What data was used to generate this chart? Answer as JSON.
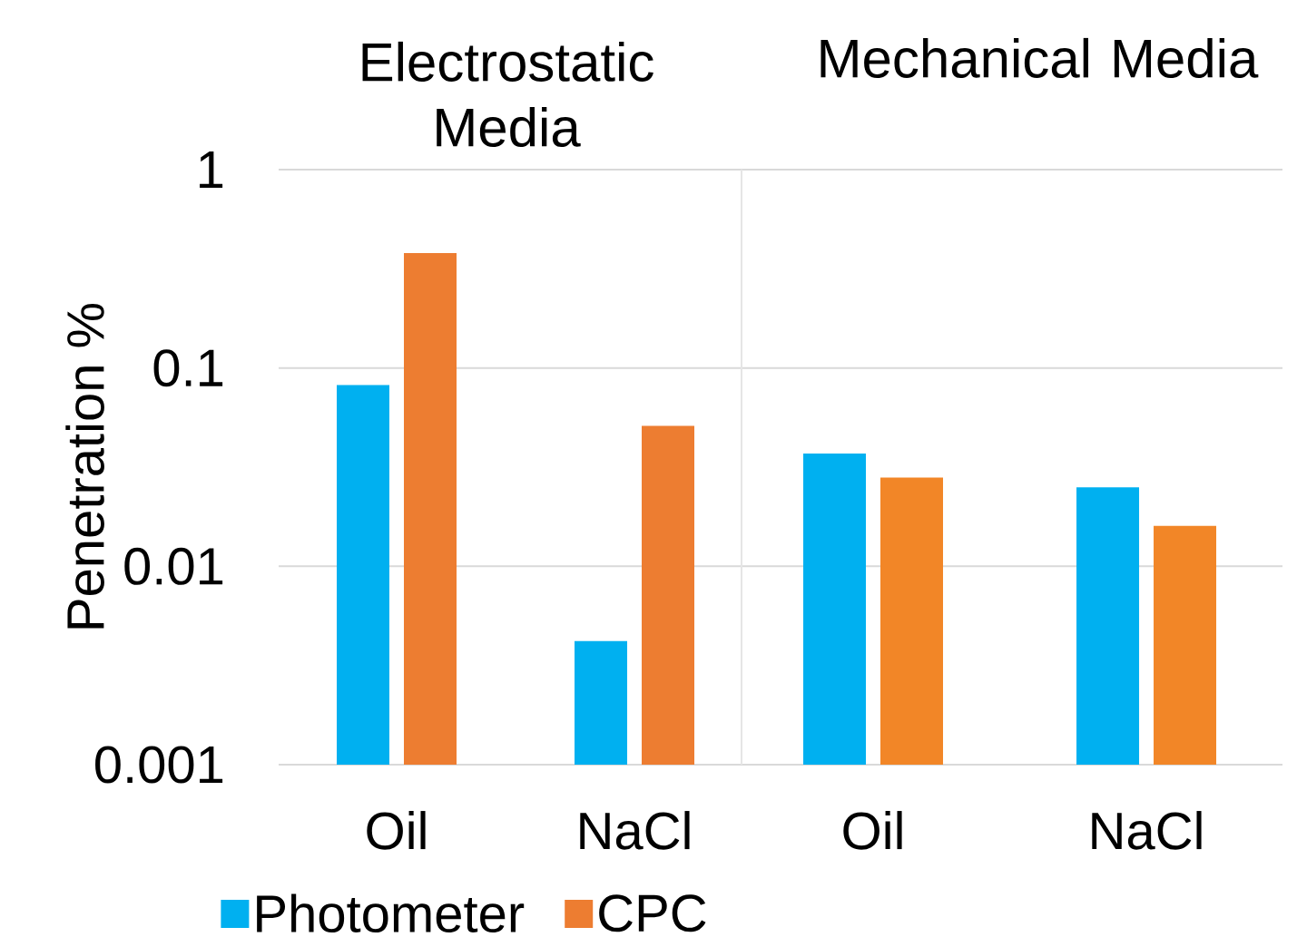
{
  "chart_data": [
    {
      "type": "bar",
      "title": "Electrostatic Media",
      "ylabel": "Penetration %",
      "categories": [
        "Oil",
        "NaCl"
      ],
      "series": [
        {
          "name": "Photometer",
          "color": "#00b0f0",
          "values": [
            0.082,
            0.0042
          ]
        },
        {
          "name": "CPC",
          "color": "#ed7d31",
          "values": [
            0.38,
            0.051
          ]
        }
      ],
      "log": "y",
      "ylim": [
        0.001,
        1
      ],
      "yticks": [
        0.001,
        0.01,
        0.1,
        1
      ],
      "grid": "y",
      "legend": "bottom"
    },
    {
      "type": "bar",
      "title": "Mechanical Media",
      "categories": [
        "Oil",
        "NaCl"
      ],
      "series": [
        {
          "color": "#00b0f0",
          "values": [
            0.037,
            0.025
          ]
        },
        {
          "color": "#f28627",
          "values": [
            0.028,
            0.016
          ]
        }
      ],
      "log": "y",
      "ylim": [
        0.001,
        1
      ],
      "yticks": [
        0.001,
        0.01,
        0.1,
        1
      ],
      "grid": "y",
      "tick_labels": "x"
    }
  ]
}
